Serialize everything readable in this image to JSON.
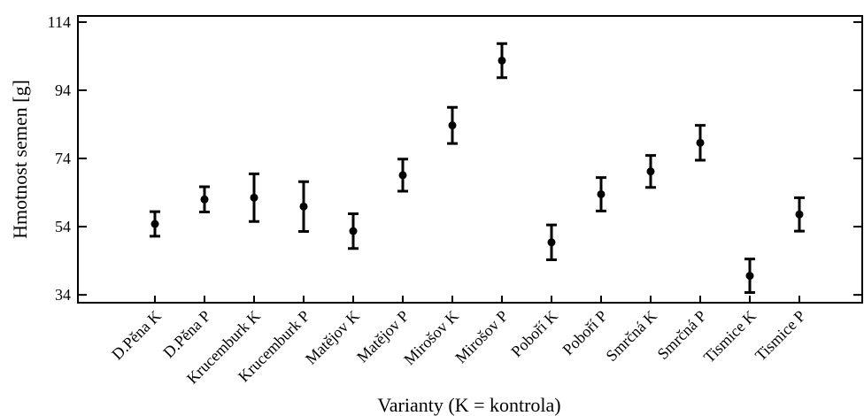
{
  "chart_data": {
    "type": "errorbar",
    "ylabel": "Hmotnost semen [g]",
    "xlabel": "Varianty (K = kontrola)",
    "categories": [
      "D.Pěna K",
      "D.Pěna P",
      "Krucemburk K",
      "Krucemburk P",
      "Matějov K",
      "Matějov P",
      "Mirošov K",
      "Mirošov P",
      "Poboří K",
      "Poboří P",
      "Smrčná K",
      "Smrčná P",
      "Tismice K",
      "Tismice P"
    ],
    "values": [
      54.8,
      62,
      62.5,
      59.9,
      52.7,
      69.1,
      83.7,
      102.7,
      49.4,
      63.5,
      70.2,
      78.6,
      39.6,
      57.6
    ],
    "errors": [
      3.6,
      3.7,
      7,
      7.3,
      5.1,
      4.7,
      5.3,
      5,
      5.1,
      4.9,
      4.7,
      5.1,
      4.9,
      4.9
    ],
    "color": "#000000",
    "ylim": [
      31.7,
      115.8
    ],
    "yticks": [
      34,
      54,
      74,
      94,
      114
    ]
  }
}
